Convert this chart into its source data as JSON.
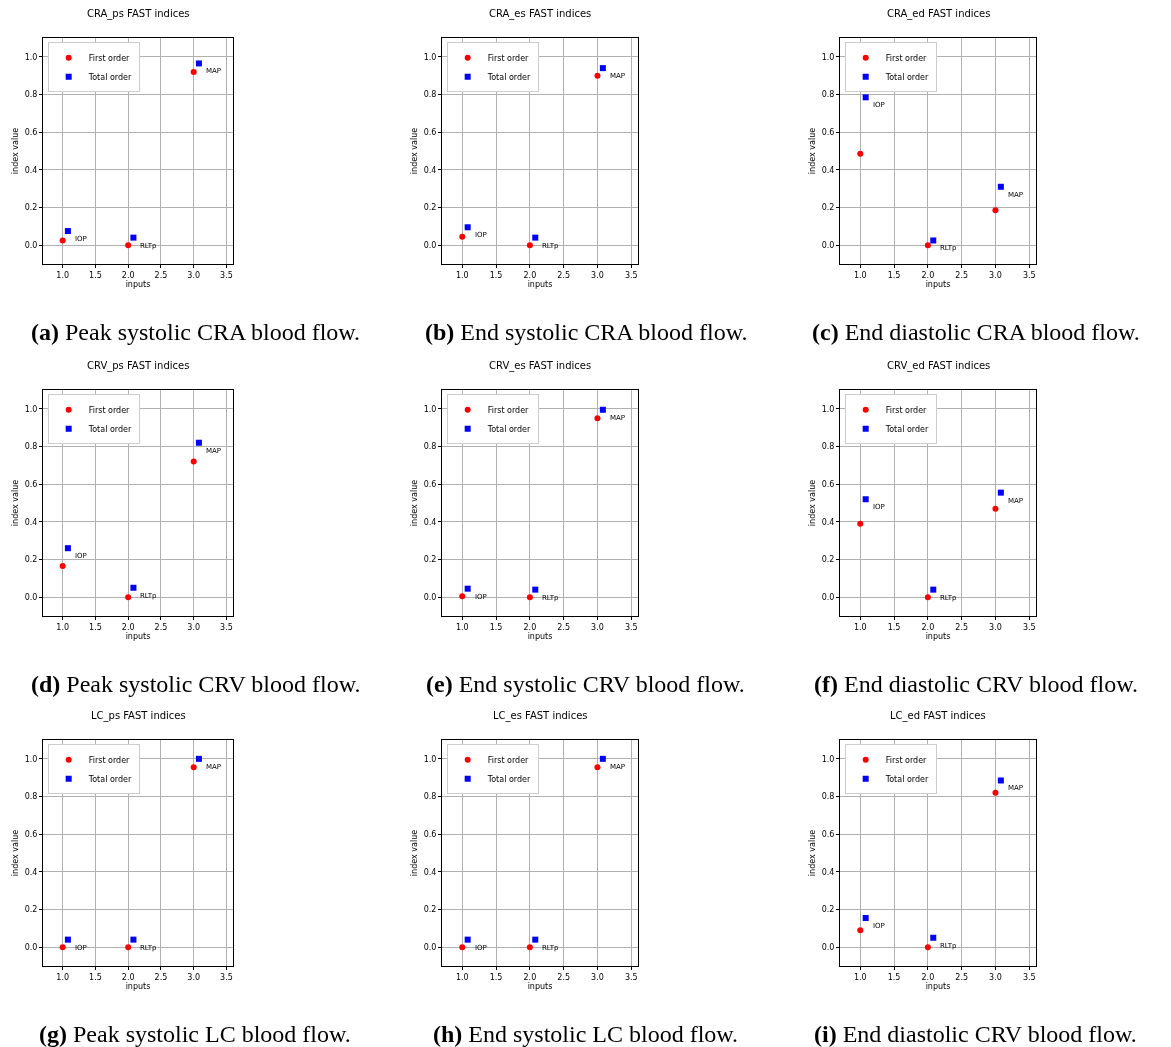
{
  "chart_data": [
    {
      "type": "scatter",
      "title": "CRA_ps FAST indices",
      "xlabel": "inputs",
      "ylabel": "index value",
      "xlim": [
        0.7,
        3.6
      ],
      "xticks": [
        {
          "value": 1,
          "label": "1.0"
        },
        {
          "value": 1.5,
          "label": "1.5"
        },
        {
          "value": 2,
          "label": "2.0"
        },
        {
          "value": 2.5,
          "label": "2.5"
        },
        {
          "value": 3,
          "label": "3.0"
        },
        {
          "value": 3.5,
          "label": "3.5"
        }
      ],
      "ylim": [
        -0.1,
        1.1
      ],
      "yticks": [
        {
          "value": 0,
          "label": "0.0"
        },
        {
          "value": 0.2,
          "label": "0.2"
        },
        {
          "value": 0.4,
          "label": "0.4"
        },
        {
          "value": 0.6,
          "label": "0.6"
        },
        {
          "value": 0.8,
          "label": "0.8"
        },
        {
          "value": 1,
          "label": "1.0"
        }
      ],
      "grid": true,
      "legend": "top left",
      "series": [
        {
          "name": "First order",
          "color": "#ff0000",
          "marker": "circle",
          "x": [
            1,
            2,
            3
          ],
          "values": [
            0.025,
            0.0,
            0.92
          ]
        },
        {
          "name": "Total order",
          "color": "#0000ff",
          "marker": "square",
          "x": [
            1.08,
            2.08,
            3.08
          ],
          "values": [
            0.075,
            0.04,
            0.965
          ]
        }
      ],
      "annotations": [
        {
          "text": "IOP",
          "x": 1.08,
          "y": 0.075
        },
        {
          "text": "RLTp",
          "x": 2.08,
          "y": 0.04
        },
        {
          "text": "MAP",
          "x": 3.08,
          "y": 0.965
        },
        "(a) Peak systolic CRA blood flow."
      ]
    },
    {
      "type": "scatter",
      "title": "CRA_es FAST indices",
      "xlabel": "inputs",
      "ylabel": "index value",
      "xlim": [
        0.7,
        3.6
      ],
      "xticks": [
        {
          "value": 1,
          "label": "1.0"
        },
        {
          "value": 1.5,
          "label": "1.5"
        },
        {
          "value": 2,
          "label": "2.0"
        },
        {
          "value": 2.5,
          "label": "2.5"
        },
        {
          "value": 3,
          "label": "3.0"
        },
        {
          "value": 3.5,
          "label": "3.5"
        }
      ],
      "ylim": [
        -0.1,
        1.1
      ],
      "yticks": [
        {
          "value": 0,
          "label": "0.0"
        },
        {
          "value": 0.2,
          "label": "0.2"
        },
        {
          "value": 0.4,
          "label": "0.4"
        },
        {
          "value": 0.6,
          "label": "0.6"
        },
        {
          "value": 0.8,
          "label": "0.8"
        },
        {
          "value": 1,
          "label": "1.0"
        }
      ],
      "grid": true,
      "legend": "top left",
      "series": [
        {
          "name": "First order",
          "color": "#ff0000",
          "marker": "circle",
          "x": [
            1,
            2,
            3
          ],
          "values": [
            0.045,
            0.0,
            0.9
          ]
        },
        {
          "name": "Total order",
          "color": "#0000ff",
          "marker": "square",
          "x": [
            1.08,
            2.08,
            3.08
          ],
          "values": [
            0.095,
            0.04,
            0.94
          ]
        }
      ],
      "annotations": [
        {
          "text": "IOP",
          "x": 1.08,
          "y": 0.095
        },
        {
          "text": "RLTp",
          "x": 2.08,
          "y": 0.04
        },
        {
          "text": "MAP",
          "x": 3.08,
          "y": 0.94
        },
        "(b) End systolic CRA blood flow."
      ]
    },
    {
      "type": "scatter",
      "title": "CRA_ed FAST indices",
      "xlabel": "inputs",
      "ylabel": "index value",
      "xlim": [
        0.7,
        3.6
      ],
      "xticks": [
        {
          "value": 1,
          "label": "1.0"
        },
        {
          "value": 1.5,
          "label": "1.5"
        },
        {
          "value": 2,
          "label": "2.0"
        },
        {
          "value": 2.5,
          "label": "2.5"
        },
        {
          "value": 3,
          "label": "3.0"
        },
        {
          "value": 3.5,
          "label": "3.5"
        }
      ],
      "ylim": [
        -0.1,
        1.1
      ],
      "yticks": [
        {
          "value": 0,
          "label": "0.0"
        },
        {
          "value": 0.2,
          "label": "0.2"
        },
        {
          "value": 0.4,
          "label": "0.4"
        },
        {
          "value": 0.6,
          "label": "0.6"
        },
        {
          "value": 0.8,
          "label": "0.8"
        },
        {
          "value": 1,
          "label": "1.0"
        }
      ],
      "grid": true,
      "legend": "top left",
      "series": [
        {
          "name": "First order",
          "color": "#ff0000",
          "marker": "circle",
          "x": [
            1,
            2,
            3
          ],
          "values": [
            0.485,
            0.0,
            0.185
          ]
        },
        {
          "name": "Total order",
          "color": "#0000ff",
          "marker": "square",
          "x": [
            1.08,
            2.08,
            3.08
          ],
          "values": [
            0.785,
            0.025,
            0.31
          ]
        }
      ],
      "annotations": [
        {
          "text": "IOP",
          "x": 1.08,
          "y": 0.785
        },
        {
          "text": "RLTp",
          "x": 2.08,
          "y": 0.025
        },
        {
          "text": "MAP",
          "x": 3.08,
          "y": 0.31
        },
        "(c) End diastolic CRA blood flow."
      ]
    },
    {
      "type": "scatter",
      "title": "CRV_ps FAST indices",
      "xlabel": "inputs",
      "ylabel": "index value",
      "xlim": [
        0.7,
        3.6
      ],
      "xticks": [
        {
          "value": 1,
          "label": "1.0"
        },
        {
          "value": 1.5,
          "label": "1.5"
        },
        {
          "value": 2,
          "label": "2.0"
        },
        {
          "value": 2.5,
          "label": "2.5"
        },
        {
          "value": 3,
          "label": "3.0"
        },
        {
          "value": 3.5,
          "label": "3.5"
        }
      ],
      "ylim": [
        -0.1,
        1.1
      ],
      "yticks": [
        {
          "value": 0,
          "label": "0.0"
        },
        {
          "value": 0.2,
          "label": "0.2"
        },
        {
          "value": 0.4,
          "label": "0.4"
        },
        {
          "value": 0.6,
          "label": "0.6"
        },
        {
          "value": 0.8,
          "label": "0.8"
        },
        {
          "value": 1,
          "label": "1.0"
        }
      ],
      "grid": true,
      "legend": "top left",
      "series": [
        {
          "name": "First order",
          "color": "#ff0000",
          "marker": "circle",
          "x": [
            1,
            2,
            3
          ],
          "values": [
            0.165,
            0.0,
            0.72
          ]
        },
        {
          "name": "Total order",
          "color": "#0000ff",
          "marker": "square",
          "x": [
            1.08,
            2.08,
            3.08
          ],
          "values": [
            0.26,
            0.05,
            0.82
          ]
        }
      ],
      "annotations": [
        {
          "text": "IOP",
          "x": 1.08,
          "y": 0.26
        },
        {
          "text": "RLTp",
          "x": 2.08,
          "y": 0.05
        },
        {
          "text": "MAP",
          "x": 3.08,
          "y": 0.82
        },
        "(d) Peak systolic CRV blood flow."
      ]
    },
    {
      "type": "scatter",
      "title": "CRV_es FAST indices",
      "xlabel": "inputs",
      "ylabel": "index value",
      "xlim": [
        0.7,
        3.6
      ],
      "xticks": [
        {
          "value": 1,
          "label": "1.0"
        },
        {
          "value": 1.5,
          "label": "1.5"
        },
        {
          "value": 2,
          "label": "2.0"
        },
        {
          "value": 2.5,
          "label": "2.5"
        },
        {
          "value": 3,
          "label": "3.0"
        },
        {
          "value": 3.5,
          "label": "3.5"
        }
      ],
      "ylim": [
        -0.1,
        1.1
      ],
      "yticks": [
        {
          "value": 0,
          "label": "0.0"
        },
        {
          "value": 0.2,
          "label": "0.2"
        },
        {
          "value": 0.4,
          "label": "0.4"
        },
        {
          "value": 0.6,
          "label": "0.6"
        },
        {
          "value": 0.8,
          "label": "0.8"
        },
        {
          "value": 1,
          "label": "1.0"
        }
      ],
      "grid": true,
      "legend": "top left",
      "series": [
        {
          "name": "First order",
          "color": "#ff0000",
          "marker": "circle",
          "x": [
            1,
            2,
            3
          ],
          "values": [
            0.005,
            0.0,
            0.95
          ]
        },
        {
          "name": "Total order",
          "color": "#0000ff",
          "marker": "square",
          "x": [
            1.08,
            2.08,
            3.08
          ],
          "values": [
            0.045,
            0.04,
            0.995
          ]
        }
      ],
      "annotations": [
        {
          "text": "IOP",
          "x": 1.08,
          "y": 0.045
        },
        {
          "text": "RLTp",
          "x": 2.08,
          "y": 0.04
        },
        {
          "text": "MAP",
          "x": 3.08,
          "y": 0.995
        },
        "(e) End systolic CRV blood flow."
      ]
    },
    {
      "type": "scatter",
      "title": "CRV_ed FAST indices",
      "xlabel": "inputs",
      "ylabel": "index value",
      "xlim": [
        0.7,
        3.6
      ],
      "xticks": [
        {
          "value": 1,
          "label": "1.0"
        },
        {
          "value": 1.5,
          "label": "1.5"
        },
        {
          "value": 2,
          "label": "2.0"
        },
        {
          "value": 2.5,
          "label": "2.5"
        },
        {
          "value": 3,
          "label": "3.0"
        },
        {
          "value": 3.5,
          "label": "3.5"
        }
      ],
      "ylim": [
        -0.1,
        1.1
      ],
      "yticks": [
        {
          "value": 0,
          "label": "0.0"
        },
        {
          "value": 0.2,
          "label": "0.2"
        },
        {
          "value": 0.4,
          "label": "0.4"
        },
        {
          "value": 0.6,
          "label": "0.6"
        },
        {
          "value": 0.8,
          "label": "0.8"
        },
        {
          "value": 1,
          "label": "1.0"
        }
      ],
      "grid": true,
      "legend": "top left",
      "series": [
        {
          "name": "First order",
          "color": "#ff0000",
          "marker": "circle",
          "x": [
            1,
            2,
            3
          ],
          "values": [
            0.39,
            0.0,
            0.47
          ]
        },
        {
          "name": "Total order",
          "color": "#0000ff",
          "marker": "square",
          "x": [
            1.08,
            2.08,
            3.08
          ],
          "values": [
            0.52,
            0.04,
            0.555
          ]
        }
      ],
      "annotations": [
        {
          "text": "IOP",
          "x": 1.08,
          "y": 0.52
        },
        {
          "text": "RLTp",
          "x": 2.08,
          "y": 0.04
        },
        {
          "text": "MAP",
          "x": 3.08,
          "y": 0.555
        },
        "(f) End diastolic CRV blood flow."
      ]
    },
    {
      "type": "scatter",
      "title": "LC_ps FAST indices",
      "xlabel": "inputs",
      "ylabel": "index value",
      "xlim": [
        0.7,
        3.6
      ],
      "xticks": [
        {
          "value": 1,
          "label": "1.0"
        },
        {
          "value": 1.5,
          "label": "1.5"
        },
        {
          "value": 2,
          "label": "2.0"
        },
        {
          "value": 2.5,
          "label": "2.5"
        },
        {
          "value": 3,
          "label": "3.0"
        },
        {
          "value": 3.5,
          "label": "3.5"
        }
      ],
      "ylim": [
        -0.1,
        1.1
      ],
      "yticks": [
        {
          "value": 0,
          "label": "0.0"
        },
        {
          "value": 0.2,
          "label": "0.2"
        },
        {
          "value": 0.4,
          "label": "0.4"
        },
        {
          "value": 0.6,
          "label": "0.6"
        },
        {
          "value": 0.8,
          "label": "0.8"
        },
        {
          "value": 1,
          "label": "1.0"
        }
      ],
      "grid": true,
      "legend": "top left",
      "series": [
        {
          "name": "First order",
          "color": "#ff0000",
          "marker": "circle",
          "x": [
            1,
            2,
            3
          ],
          "values": [
            0.0,
            0.0,
            0.955
          ]
        },
        {
          "name": "Total order",
          "color": "#0000ff",
          "marker": "square",
          "x": [
            1.08,
            2.08,
            3.08
          ],
          "values": [
            0.04,
            0.04,
            1.0
          ]
        }
      ],
      "annotations": [
        {
          "text": "IOP",
          "x": 1.08,
          "y": 0.04
        },
        {
          "text": "RLTp",
          "x": 2.08,
          "y": 0.04
        },
        {
          "text": "MAP",
          "x": 3.08,
          "y": 1.0
        },
        "(g) Peak systolic LC blood flow."
      ]
    },
    {
      "type": "scatter",
      "title": "LC_es FAST indices",
      "xlabel": "inputs",
      "ylabel": "index value",
      "xlim": [
        0.7,
        3.6
      ],
      "xticks": [
        {
          "value": 1,
          "label": "1.0"
        },
        {
          "value": 1.5,
          "label": "1.5"
        },
        {
          "value": 2,
          "label": "2.0"
        },
        {
          "value": 2.5,
          "label": "2.5"
        },
        {
          "value": 3,
          "label": "3.0"
        },
        {
          "value": 3.5,
          "label": "3.5"
        }
      ],
      "ylim": [
        -0.1,
        1.1
      ],
      "yticks": [
        {
          "value": 0,
          "label": "0.0"
        },
        {
          "value": 0.2,
          "label": "0.2"
        },
        {
          "value": 0.4,
          "label": "0.4"
        },
        {
          "value": 0.6,
          "label": "0.6"
        },
        {
          "value": 0.8,
          "label": "0.8"
        },
        {
          "value": 1,
          "label": "1.0"
        }
      ],
      "grid": true,
      "legend": "top left",
      "series": [
        {
          "name": "First order",
          "color": "#ff0000",
          "marker": "circle",
          "x": [
            1,
            2,
            3
          ],
          "values": [
            0.0,
            0.0,
            0.955
          ]
        },
        {
          "name": "Total order",
          "color": "#0000ff",
          "marker": "square",
          "x": [
            1.08,
            2.08,
            3.08
          ],
          "values": [
            0.04,
            0.04,
            1.0
          ]
        }
      ],
      "annotations": [
        {
          "text": "IOP",
          "x": 1.08,
          "y": 0.04
        },
        {
          "text": "RLTp",
          "x": 2.08,
          "y": 0.04
        },
        {
          "text": "MAP",
          "x": 3.08,
          "y": 1.0
        },
        "(h) End systolic LC blood flow."
      ]
    },
    {
      "type": "scatter",
      "title": "LC_ed FAST indices",
      "xlabel": "inputs",
      "ylabel": "index value",
      "xlim": [
        0.7,
        3.6
      ],
      "xticks": [
        {
          "value": 1,
          "label": "1.0"
        },
        {
          "value": 1.5,
          "label": "1.5"
        },
        {
          "value": 2,
          "label": "2.0"
        },
        {
          "value": 2.5,
          "label": "2.5"
        },
        {
          "value": 3,
          "label": "3.0"
        },
        {
          "value": 3.5,
          "label": "3.5"
        }
      ],
      "ylim": [
        -0.1,
        1.1
      ],
      "yticks": [
        {
          "value": 0,
          "label": "0.0"
        },
        {
          "value": 0.2,
          "label": "0.2"
        },
        {
          "value": 0.4,
          "label": "0.4"
        },
        {
          "value": 0.6,
          "label": "0.6"
        },
        {
          "value": 0.8,
          "label": "0.8"
        },
        {
          "value": 1,
          "label": "1.0"
        }
      ],
      "grid": true,
      "legend": "top left",
      "series": [
        {
          "name": "First order",
          "color": "#ff0000",
          "marker": "circle",
          "x": [
            1,
            2,
            3
          ],
          "values": [
            0.09,
            0.0,
            0.82
          ]
        },
        {
          "name": "Total order",
          "color": "#0000ff",
          "marker": "square",
          "x": [
            1.08,
            2.08,
            3.08
          ],
          "values": [
            0.155,
            0.05,
            0.885
          ]
        }
      ],
      "annotations": [
        {
          "text": "IOP",
          "x": 1.08,
          "y": 0.155
        },
        {
          "text": "RLTp",
          "x": 2.08,
          "y": 0.05
        },
        {
          "text": "MAP",
          "x": 3.08,
          "y": 0.885
        },
        "(i) End diastolic CRV blood flow."
      ]
    }
  ]
}
